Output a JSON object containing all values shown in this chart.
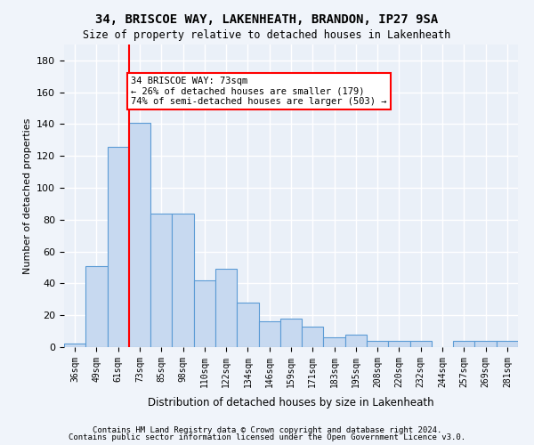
{
  "title1": "34, BRISCOE WAY, LAKENHEATH, BRANDON, IP27 9SA",
  "title2": "Size of property relative to detached houses in Lakenheath",
  "xlabel": "Distribution of detached houses by size in Lakenheath",
  "ylabel": "Number of detached properties",
  "categories": [
    "36sqm",
    "49sqm",
    "61sqm",
    "73sqm",
    "85sqm",
    "98sqm",
    "110sqm",
    "122sqm",
    "134sqm",
    "146sqm",
    "159sqm",
    "171sqm",
    "183sqm",
    "195sqm",
    "208sqm",
    "220sqm",
    "232sqm",
    "244sqm",
    "257sqm",
    "269sqm",
    "281sqm"
  ],
  "values": [
    2,
    51,
    126,
    141,
    84,
    84,
    42,
    49,
    28,
    16,
    18,
    13,
    6,
    8,
    4,
    4,
    4,
    0,
    4,
    4,
    4
  ],
  "bar_color": "#c7d9f0",
  "bar_edge_color": "#5b9bd5",
  "vline_x": 3,
  "vline_color": "red",
  "annotation_text": "34 BRISCOE WAY: 73sqm\n← 26% of detached houses are smaller (179)\n74% of semi-detached houses are larger (503) →",
  "annotation_box_color": "white",
  "annotation_box_edge": "red",
  "ylim": [
    0,
    190
  ],
  "yticks": [
    0,
    20,
    40,
    60,
    80,
    100,
    120,
    140,
    160,
    180
  ],
  "footer1": "Contains HM Land Registry data © Crown copyright and database right 2024.",
  "footer2": "Contains public sector information licensed under the Open Government Licence v3.0.",
  "bg_color": "#f0f4fa",
  "plot_bg_color": "#eaf0f8",
  "grid_color": "white"
}
